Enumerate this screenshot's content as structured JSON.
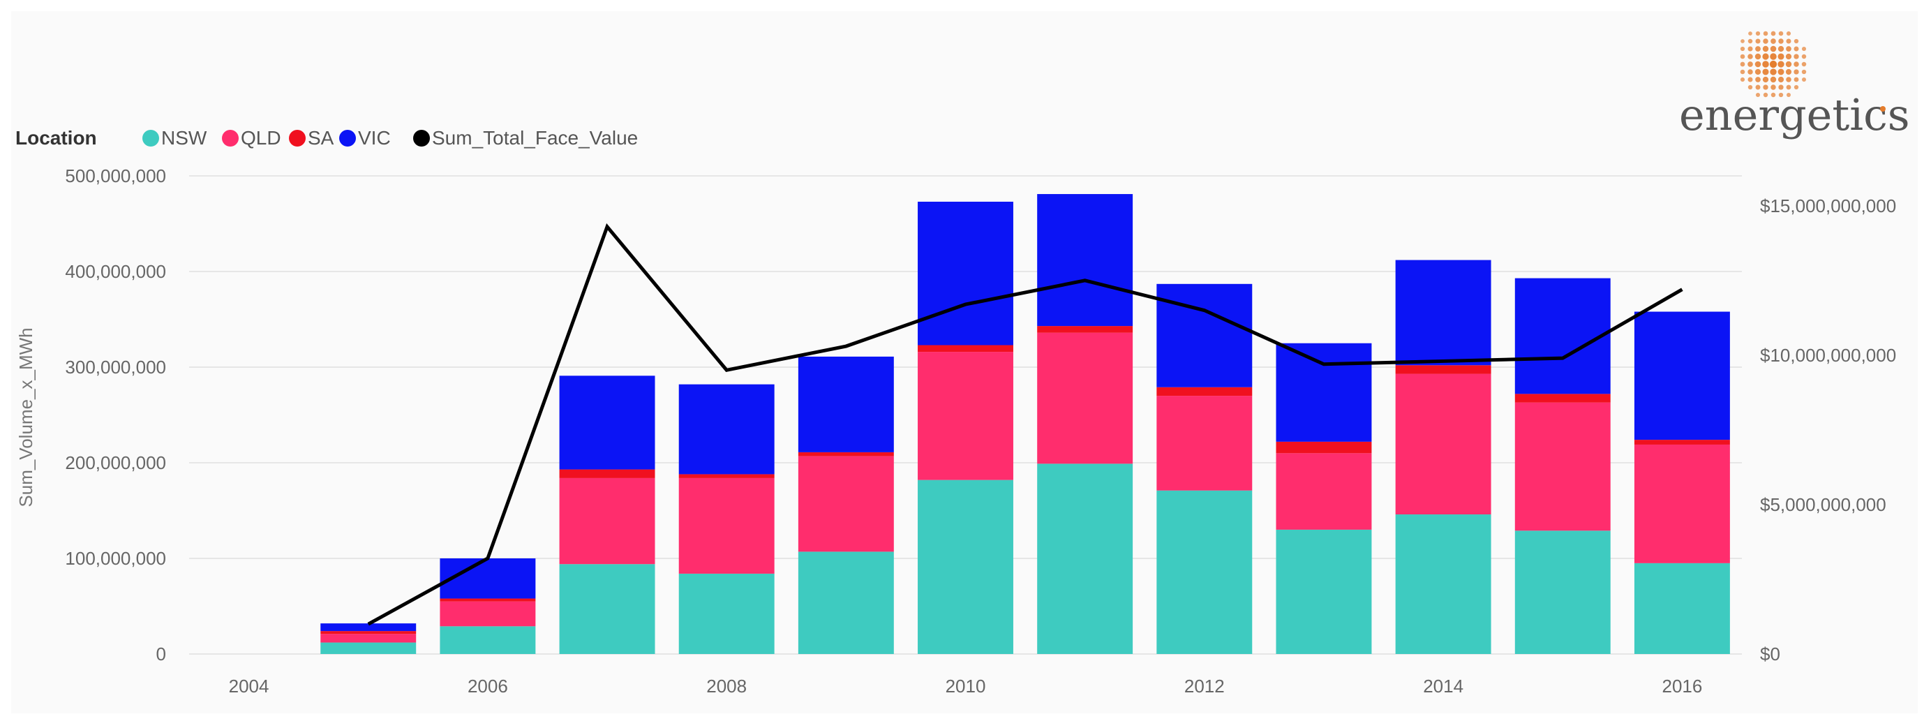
{
  "colors": {
    "NSW": "#3ecbc0",
    "QLD": "#ff2d6d",
    "SA": "#f0101f",
    "VIC": "#0b14f5",
    "Sum_Total_Face_Value": "#000000",
    "grid": "#e6e6e6",
    "logo_orange": "#e47c2c"
  },
  "logo": {
    "text": "energetics",
    "icon": "orange-dot-sphere-icon"
  },
  "chart_data": {
    "type": "bar",
    "stacked": true,
    "legend_title": "Location",
    "legend_position": "top-left",
    "grid": true,
    "x": [
      "2004",
      "2005",
      "2006",
      "2007",
      "2008",
      "2009",
      "2010",
      "2011",
      "2012",
      "2013",
      "2014",
      "2015",
      "2016"
    ],
    "x_tick_labels": [
      "2004",
      "2006",
      "2008",
      "2010",
      "2012",
      "2014",
      "2016"
    ],
    "xlabel": "",
    "ylabel": "Sum_Volume_x_MWh",
    "ylim": [
      0,
      500000000
    ],
    "y_tick_labels": [
      "0",
      "100,000,000",
      "200,000,000",
      "300,000,000",
      "400,000,000",
      "500,000,000"
    ],
    "y2lim": [
      0,
      16000000000
    ],
    "y2_tick_labels": [
      "$0",
      "$5,000,000,000",
      "$10,000,000,000",
      "$15,000,000,000"
    ],
    "series": [
      {
        "name": "NSW",
        "values": [
          0,
          12000000,
          29000000,
          94000000,
          84000000,
          107000000,
          182000000,
          199000000,
          171000000,
          130000000,
          146000000,
          129000000,
          95000000
        ]
      },
      {
        "name": "QLD",
        "values": [
          0,
          9000000,
          26000000,
          90000000,
          100000000,
          100000000,
          134000000,
          137000000,
          99000000,
          80000000,
          147000000,
          134000000,
          124000000
        ]
      },
      {
        "name": "SA",
        "values": [
          0,
          3000000,
          3000000,
          9000000,
          4000000,
          4000000,
          7000000,
          7000000,
          9000000,
          12000000,
          9000000,
          9000000,
          5000000
        ]
      },
      {
        "name": "VIC",
        "values": [
          0,
          8000000,
          42000000,
          98000000,
          94000000,
          100000000,
          150000000,
          138000000,
          108000000,
          103000000,
          110000000,
          121000000,
          134000000
        ]
      }
    ],
    "line_series": {
      "name": "Sum_Total_Face_Value",
      "axis": "right",
      "values": [
        null,
        1000000000,
        3200000000,
        14300000000,
        9500000000,
        10300000000,
        11700000000,
        12500000000,
        11500000000,
        9700000000,
        9800000000,
        9900000000,
        12200000000
      ]
    }
  }
}
